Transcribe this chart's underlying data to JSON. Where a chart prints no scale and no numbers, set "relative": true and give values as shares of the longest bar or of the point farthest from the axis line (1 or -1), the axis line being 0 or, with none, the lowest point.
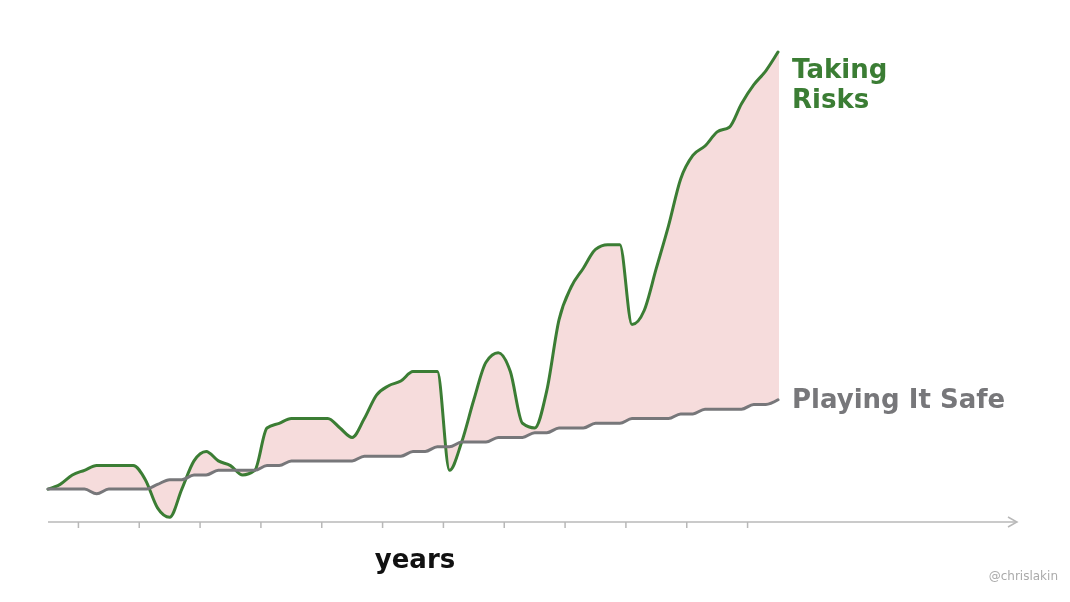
{
  "chart_data": {
    "type": "line",
    "relative": true,
    "xlabel": "years",
    "categories": [
      null,
      null,
      null,
      null,
      null,
      null,
      null,
      null,
      null,
      null,
      null,
      null,
      null,
      null,
      null,
      null,
      null,
      null,
      null,
      null,
      null,
      null,
      null,
      null,
      null,
      null,
      null,
      null,
      null,
      null,
      null,
      null,
      null,
      null,
      null,
      null,
      null,
      null,
      null,
      null,
      null,
      null,
      null,
      null,
      null,
      null,
      null,
      null,
      null,
      null,
      null,
      null,
      null,
      null,
      null,
      null,
      null,
      null,
      null,
      null,
      null
    ],
    "series": [
      {
        "name": "Taking Risks",
        "color": "#3b7d34",
        "values": [
          0.07,
          0.08,
          0.1,
          0.11,
          0.12,
          0.12,
          0.12,
          0.12,
          0.09,
          0.03,
          0.01,
          0.07,
          0.13,
          0.15,
          0.13,
          0.12,
          0.1,
          0.11,
          0.2,
          0.21,
          0.22,
          0.22,
          0.22,
          0.22,
          0.2,
          0.18,
          0.22,
          0.27,
          0.29,
          0.3,
          0.32,
          0.32,
          0.32,
          0.11,
          0.17,
          0.26,
          0.34,
          0.36,
          0.32,
          0.21,
          0.2,
          0.28,
          0.43,
          0.5,
          0.54,
          0.58,
          0.59,
          0.59,
          0.42,
          0.45,
          0.54,
          0.63,
          0.73,
          0.78,
          0.8,
          0.83,
          0.84,
          0.89,
          0.93,
          0.96,
          1.0
        ],
        "lower": [
          0.07,
          0.07,
          0.07,
          0.07,
          0.06,
          0.07,
          0.07,
          0.07,
          0.07,
          0.08,
          0.09,
          0.09,
          0.1,
          0.1,
          0.11,
          0.11,
          0.11,
          0.11,
          0.12,
          0.12,
          0.13,
          0.13,
          0.13,
          0.13,
          0.13,
          0.13,
          0.14,
          0.14,
          0.14,
          0.14,
          0.15,
          0.15,
          0.16,
          0.16,
          0.17,
          0.17,
          0.17,
          0.18,
          0.18,
          0.18,
          0.19,
          0.19,
          0.2,
          0.2,
          0.2,
          0.21,
          0.21,
          0.21,
          0.22,
          0.22,
          0.22,
          0.22,
          0.23,
          0.23,
          0.24,
          0.24,
          0.24,
          0.24,
          0.25,
          0.25,
          0.26
        ],
        "upper": [
          0.07,
          0.08,
          0.1,
          0.11,
          0.12,
          0.12,
          0.12,
          0.12,
          0.09,
          0.03,
          0.01,
          0.07,
          0.13,
          0.15,
          0.13,
          0.12,
          0.1,
          0.11,
          0.2,
          0.21,
          0.22,
          0.22,
          0.22,
          0.22,
          0.2,
          0.18,
          0.22,
          0.27,
          0.29,
          0.3,
          0.32,
          0.32,
          0.32,
          0.11,
          0.17,
          0.26,
          0.34,
          0.36,
          0.32,
          0.21,
          0.2,
          0.28,
          0.43,
          0.5,
          0.54,
          0.58,
          0.59,
          0.59,
          0.42,
          0.45,
          0.54,
          0.63,
          0.73,
          0.78,
          0.8,
          0.83,
          0.84,
          0.89,
          0.93,
          0.96,
          1.0
        ]
      },
      {
        "name": "Playing It Safe",
        "color": "#77777a",
        "values": [
          0.07,
          0.07,
          0.07,
          0.07,
          0.06,
          0.07,
          0.07,
          0.07,
          0.07,
          0.08,
          0.09,
          0.09,
          0.1,
          0.1,
          0.11,
          0.11,
          0.11,
          0.11,
          0.12,
          0.12,
          0.13,
          0.13,
          0.13,
          0.13,
          0.13,
          0.13,
          0.14,
          0.14,
          0.14,
          0.14,
          0.15,
          0.15,
          0.16,
          0.16,
          0.17,
          0.17,
          0.17,
          0.18,
          0.18,
          0.18,
          0.19,
          0.19,
          0.2,
          0.2,
          0.2,
          0.21,
          0.21,
          0.21,
          0.22,
          0.22,
          0.22,
          0.22,
          0.23,
          0.23,
          0.24,
          0.24,
          0.24,
          0.24,
          0.25,
          0.25,
          0.26
        ]
      }
    ],
    "annotations": [
      "@chrislakin"
    ]
  }
}
